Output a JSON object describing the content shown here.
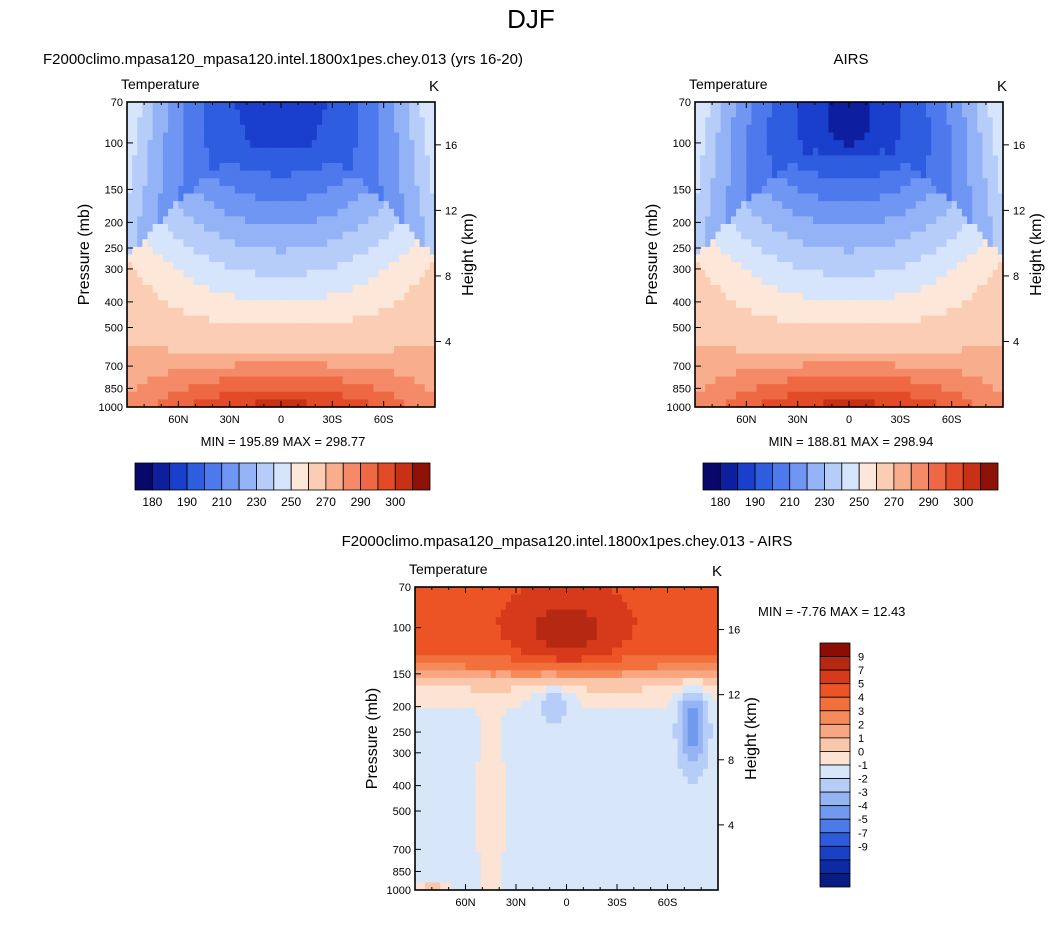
{
  "page_title": "DJF",
  "chart_data": [
    {
      "type": "heatmap",
      "title": "F2000climo.mpasa120_mpasa120.intel.1800x1pes.chey.013 (yrs 16-20)",
      "variable": "Temperature",
      "units": "K",
      "ylabel": "Pressure (mb)",
      "ylabel_right": "Height (km)",
      "y_ticks": [
        "70",
        "100",
        "150",
        "200",
        "250",
        "300",
        "400",
        "500",
        "700",
        "850",
        "1000"
      ],
      "y_tick_values": [
        70,
        100,
        150,
        200,
        250,
        300,
        400,
        500,
        700,
        850,
        1000
      ],
      "y_right_ticks": [
        "4",
        "8",
        "12",
        "16"
      ],
      "y_right_values": [
        4,
        8,
        12,
        16
      ],
      "x_ticks": [
        "60N",
        "30N",
        "0",
        "30S",
        "60S"
      ],
      "x_tick_values": [
        60,
        30,
        0,
        -30,
        -60
      ],
      "xlim": [
        90,
        -90
      ],
      "ylim": [
        70,
        1000
      ],
      "stats": "MIN = 195.89  MAX = 298.77",
      "min": 195.89,
      "max": 298.77,
      "colorbar_labels": [
        "180",
        "190",
        "210",
        "230",
        "250",
        "270",
        "290",
        "300"
      ],
      "colorbar_orientation": "horizontal"
    },
    {
      "type": "heatmap",
      "title": "AIRS",
      "variable": "Temperature",
      "units": "K",
      "ylabel": "Pressure (mb)",
      "ylabel_right": "Height (km)",
      "y_ticks": [
        "70",
        "100",
        "150",
        "200",
        "250",
        "300",
        "400",
        "500",
        "700",
        "850",
        "1000"
      ],
      "y_tick_values": [
        70,
        100,
        150,
        200,
        250,
        300,
        400,
        500,
        700,
        850,
        1000
      ],
      "y_right_ticks": [
        "4",
        "8",
        "12",
        "16"
      ],
      "y_right_values": [
        4,
        8,
        12,
        16
      ],
      "x_ticks": [
        "60N",
        "30N",
        "0",
        "30S",
        "60S"
      ],
      "x_tick_values": [
        60,
        30,
        0,
        -30,
        -60
      ],
      "xlim": [
        90,
        -90
      ],
      "ylim": [
        70,
        1000
      ],
      "stats": "MIN = 188.81  MAX = 298.94",
      "min": 188.81,
      "max": 298.94,
      "colorbar_labels": [
        "180",
        "190",
        "210",
        "230",
        "250",
        "270",
        "290",
        "300"
      ],
      "colorbar_orientation": "horizontal"
    },
    {
      "type": "heatmap",
      "title": "F2000climo.mpasa120_mpasa120.intel.1800x1pes.chey.013 - AIRS",
      "variable": "Temperature",
      "units": "K",
      "ylabel": "Pressure (mb)",
      "ylabel_right": "Height (km)",
      "y_ticks": [
        "70",
        "100",
        "150",
        "200",
        "250",
        "300",
        "400",
        "500",
        "700",
        "850",
        "1000"
      ],
      "y_tick_values": [
        70,
        100,
        150,
        200,
        250,
        300,
        400,
        500,
        700,
        850,
        1000
      ],
      "y_right_ticks": [
        "4",
        "8",
        "12",
        "16"
      ],
      "y_right_values": [
        4,
        8,
        12,
        16
      ],
      "x_ticks": [
        "60N",
        "30N",
        "0",
        "30S",
        "60S"
      ],
      "x_tick_values": [
        60,
        30,
        0,
        -30,
        -60
      ],
      "xlim": [
        90,
        -90
      ],
      "ylim": [
        70,
        1000
      ],
      "stats": "MIN =  -7.76  MAX =  12.43",
      "min": -7.76,
      "max": 12.43,
      "colorbar_labels": [
        "9",
        "7",
        "5",
        "4",
        "3",
        "2",
        "1",
        "0",
        "-1",
        "-2",
        "-3",
        "-4",
        "-5",
        "-7",
        "-9"
      ],
      "colorbar_orientation": "vertical"
    }
  ],
  "colors": {
    "abs_levels": [
      "#08086b",
      "#0d1f9e",
      "#1a3fcc",
      "#2f5de0",
      "#4d79ec",
      "#6f96f2",
      "#93b3f6",
      "#b6cdf9",
      "#d6e5fb",
      "#fde7d8",
      "#fbcdb4",
      "#f8ad8d",
      "#f48a67",
      "#ee6844",
      "#e24a28",
      "#c73216",
      "#8e1208"
    ],
    "diff_levels": [
      "#8b0d06",
      "#b52812",
      "#d63a1a",
      "#ec5425",
      "#f2703c",
      "#f58a5b",
      "#f8a782",
      "#fbc7aa",
      "#fde3d3",
      "#d8e6fa",
      "#b5cdf7",
      "#94b4f3",
      "#7199ee",
      "#4e7ae8",
      "#2e5bdc",
      "#1a40c4",
      "#0c2aa4",
      "#081c82"
    ]
  }
}
